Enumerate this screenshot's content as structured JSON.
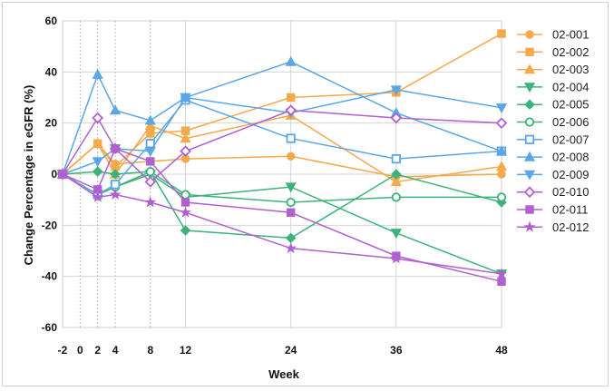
{
  "chart_data": {
    "type": "line",
    "xlabel": "Week",
    "ylabel": "Change Percentage in eGFR (%)",
    "x_ticks": [
      -2,
      0,
      2,
      4,
      8,
      12,
      24,
      36,
      48
    ],
    "y_ticks": [
      -60,
      -40,
      -20,
      0,
      20,
      40,
      60
    ],
    "xlim": [
      -2,
      48
    ],
    "ylim": [
      -60,
      60
    ],
    "grid": true,
    "dotted_reference_lines_x": [
      0,
      2,
      4,
      8
    ],
    "legend_position": "right",
    "series": [
      {
        "name": "02-001",
        "color": "#f4a94a",
        "marker": "circle",
        "x": [
          -2,
          2,
          4,
          8,
          12,
          24,
          36,
          48
        ],
        "y": [
          0,
          12,
          4,
          5,
          6,
          7,
          -1,
          0
        ]
      },
      {
        "name": "02-002",
        "color": "#f4a94a",
        "marker": "square",
        "x": [
          -2,
          2,
          4,
          8,
          12,
          24,
          36,
          48
        ],
        "y": [
          0,
          12,
          3,
          16,
          17,
          30,
          32,
          55
        ]
      },
      {
        "name": "02-003",
        "color": "#f4a94a",
        "marker": "triangle-up",
        "x": [
          -2,
          2,
          4,
          8,
          12,
          24,
          36,
          48
        ],
        "y": [
          0,
          12,
          0,
          19,
          14,
          23,
          -3,
          3
        ]
      },
      {
        "name": "02-004",
        "color": "#3bb37a",
        "marker": "triangle-down",
        "x": [
          -2,
          2,
          4,
          8,
          12,
          24,
          36,
          48
        ],
        "y": [
          0,
          -8,
          -5,
          0,
          -9,
          -5,
          -23,
          -39
        ]
      },
      {
        "name": "02-005",
        "color": "#3bb37a",
        "marker": "diamond",
        "x": [
          -2,
          2,
          4,
          8,
          12,
          24,
          36,
          48
        ],
        "y": [
          0,
          1,
          0,
          1,
          -22,
          -25,
          0,
          -11
        ]
      },
      {
        "name": "02-006",
        "color": "#3bb37a",
        "marker": "circle-open",
        "x": [
          -2,
          2,
          4,
          8,
          12,
          24,
          36,
          48
        ],
        "y": [
          0,
          -8,
          -5,
          1,
          -8,
          -11,
          -9,
          -9
        ]
      },
      {
        "name": "02-007",
        "color": "#5aa6e6",
        "marker": "square-open",
        "x": [
          -2,
          2,
          4,
          8,
          12,
          24,
          36,
          48
        ],
        "y": [
          0,
          -8,
          -4,
          12,
          29,
          14,
          6,
          9
        ]
      },
      {
        "name": "02-008",
        "color": "#5aa6e6",
        "marker": "triangle-up",
        "x": [
          -2,
          2,
          4,
          8,
          12,
          24,
          36,
          48
        ],
        "y": [
          0,
          39,
          25,
          21,
          30,
          44,
          24,
          9
        ]
      },
      {
        "name": "02-009",
        "color": "#5aa6e6",
        "marker": "triangle-down",
        "x": [
          -2,
          2,
          4,
          8,
          12,
          24,
          36,
          48
        ],
        "y": [
          0,
          5,
          10,
          9,
          30,
          24,
          33,
          26
        ]
      },
      {
        "name": "02-010",
        "color": "#b060d0",
        "marker": "diamond-open",
        "x": [
          -2,
          2,
          4,
          8,
          12,
          24,
          36,
          48
        ],
        "y": [
          0,
          22,
          10,
          -3,
          9,
          25,
          22,
          20
        ]
      },
      {
        "name": "02-011",
        "color": "#b060d0",
        "marker": "square",
        "x": [
          -2,
          2,
          4,
          8,
          12,
          24,
          36,
          48
        ],
        "y": [
          0,
          -6,
          10,
          5,
          -11,
          -15,
          -32,
          -42
        ]
      },
      {
        "name": "02-012",
        "color": "#b060d0",
        "marker": "star",
        "x": [
          -2,
          2,
          4,
          8,
          12,
          24,
          36,
          48
        ],
        "y": [
          0,
          -9,
          -8,
          -11,
          -15,
          -29,
          -33,
          -39
        ]
      }
    ]
  }
}
